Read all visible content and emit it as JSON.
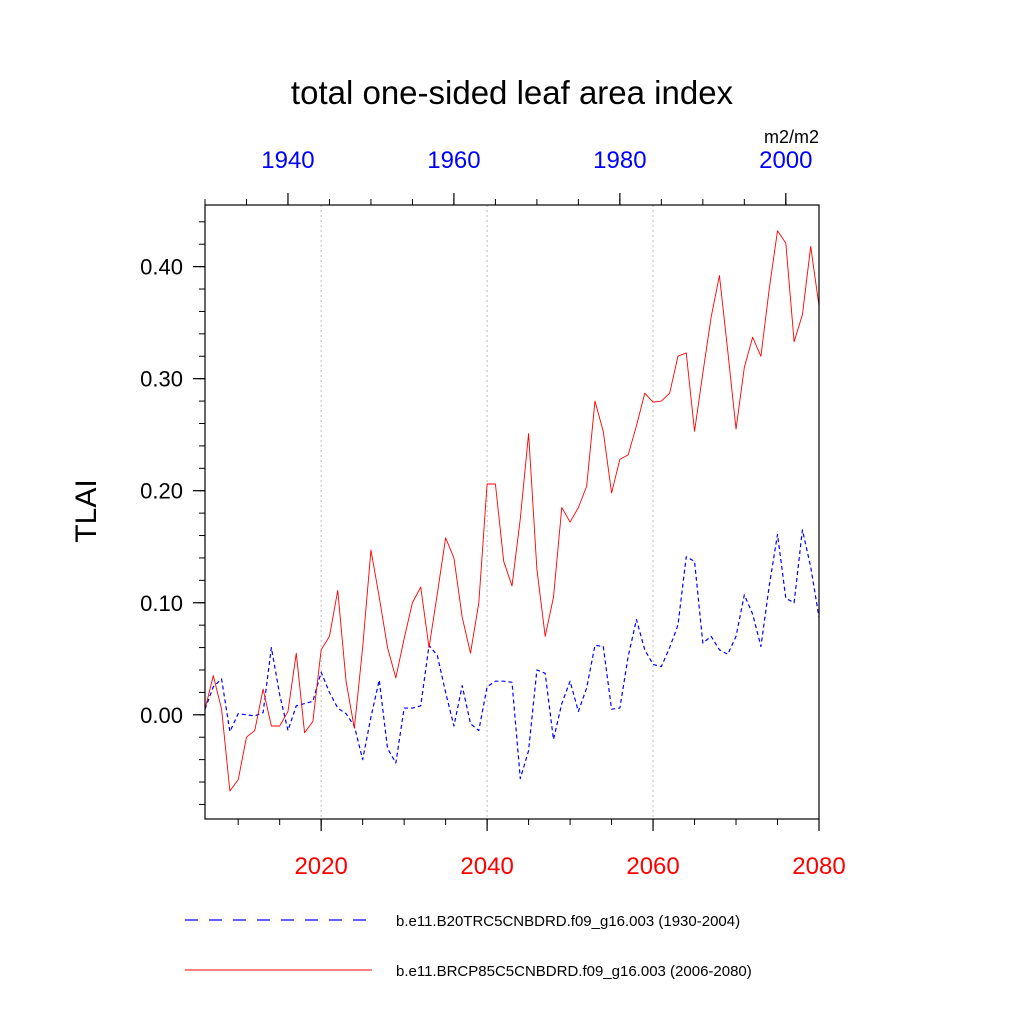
{
  "chart_data": {
    "type": "line",
    "title": "total one-sided leaf area index",
    "units": "m2/m2",
    "ylabel": "TLAI",
    "ylim": [
      -0.093,
      0.455
    ],
    "yticks": [
      0.0,
      0.1,
      0.2,
      0.3,
      0.4
    ],
    "ytick_labels": [
      "0.00",
      "0.10",
      "0.20",
      "0.30",
      "0.40"
    ],
    "y_minor_step": 0.02,
    "xlim_bottom": [
      2006,
      2080
    ],
    "xticks_bottom": [
      2020,
      2040,
      2060,
      2080
    ],
    "xlim_top": [
      1930,
      2004
    ],
    "xticks_top": [
      1940,
      1960,
      1980,
      2000
    ],
    "x_minor_step": 5,
    "vertical_gridlines": [
      2020,
      2040,
      2060
    ],
    "colors": {
      "top_axis": "#0000ff",
      "bottom_axis": "#ff0000",
      "series1": "#0000ff",
      "series2": "#ff0000",
      "grid": "#bbbbbb"
    },
    "legend_position": "bottom",
    "series": [
      {
        "name": "b.e11.B20TRC5CNBDRD.f09_g16.003 (1930-2004)",
        "axis": "top",
        "style": "dashed",
        "x": [
          1930,
          1931,
          1932,
          1933,
          1934,
          1935,
          1936,
          1937,
          1938,
          1939,
          1940,
          1941,
          1942,
          1943,
          1944,
          1945,
          1946,
          1947,
          1948,
          1949,
          1950,
          1951,
          1952,
          1953,
          1954,
          1955,
          1956,
          1957,
          1958,
          1959,
          1960,
          1961,
          1962,
          1963,
          1964,
          1965,
          1966,
          1967,
          1968,
          1969,
          1970,
          1971,
          1972,
          1973,
          1974,
          1975,
          1976,
          1977,
          1978,
          1979,
          1980,
          1981,
          1982,
          1983,
          1984,
          1985,
          1986,
          1987,
          1988,
          1989,
          1990,
          1991,
          1992,
          1993,
          1994,
          1995,
          1996,
          1997,
          1998,
          1999,
          2000,
          2001,
          2002,
          2003,
          2004
        ],
        "values": [
          0.005,
          0.025,
          0.032,
          -0.015,
          0.001,
          0.0,
          -0.001,
          0.002,
          0.06,
          0.018,
          -0.014,
          0.008,
          0.01,
          0.012,
          0.038,
          0.02,
          0.006,
          0.001,
          -0.01,
          -0.04,
          -0.002,
          0.031,
          -0.03,
          -0.043,
          0.006,
          0.006,
          0.008,
          0.062,
          0.053,
          0.02,
          -0.01,
          0.026,
          -0.008,
          -0.014,
          0.025,
          0.03,
          0.03,
          0.029,
          -0.057,
          -0.032,
          0.04,
          0.037,
          -0.022,
          0.01,
          0.03,
          0.003,
          0.024,
          0.062,
          0.061,
          0.005,
          0.006,
          0.052,
          0.085,
          0.058,
          0.045,
          0.043,
          0.06,
          0.08,
          0.141,
          0.137,
          0.064,
          0.07,
          0.058,
          0.054,
          0.07,
          0.107,
          0.09,
          0.061,
          0.115,
          0.161,
          0.104,
          0.1,
          0.165,
          0.132,
          0.087
        ]
      },
      {
        "name": "b.e11.BRCP85C5CNBDRD.f09_g16.003 (2006-2080)",
        "axis": "bottom",
        "style": "solid",
        "x": [
          2006,
          2007,
          2008,
          2009,
          2010,
          2011,
          2012,
          2013,
          2014,
          2015,
          2016,
          2017,
          2018,
          2019,
          2020,
          2021,
          2022,
          2023,
          2024,
          2025,
          2026,
          2027,
          2028,
          2029,
          2030,
          2031,
          2032,
          2033,
          2034,
          2035,
          2036,
          2037,
          2038,
          2039,
          2040,
          2041,
          2042,
          2043,
          2044,
          2045,
          2046,
          2047,
          2048,
          2049,
          2050,
          2051,
          2052,
          2053,
          2054,
          2055,
          2056,
          2057,
          2058,
          2059,
          2060,
          2061,
          2062,
          2063,
          2064,
          2065,
          2066,
          2067,
          2068,
          2069,
          2070,
          2071,
          2072,
          2073,
          2074,
          2075,
          2076,
          2077,
          2078,
          2079,
          2080
        ],
        "values": [
          0.005,
          0.035,
          0.005,
          -0.068,
          -0.058,
          -0.02,
          -0.014,
          0.023,
          -0.01,
          -0.01,
          0.003,
          0.055,
          -0.016,
          -0.006,
          0.058,
          0.07,
          0.111,
          0.03,
          -0.012,
          0.06,
          0.147,
          0.105,
          0.06,
          0.033,
          0.068,
          0.1,
          0.114,
          0.06,
          0.108,
          0.158,
          0.14,
          0.087,
          0.055,
          0.1,
          0.206,
          0.206,
          0.137,
          0.115,
          0.175,
          0.251,
          0.13,
          0.07,
          0.105,
          0.185,
          0.172,
          0.185,
          0.204,
          0.28,
          0.253,
          0.198,
          0.228,
          0.232,
          0.258,
          0.287,
          0.279,
          0.28,
          0.287,
          0.32,
          0.323,
          0.253,
          0.305,
          0.355,
          0.392,
          0.325,
          0.255,
          0.31,
          0.337,
          0.32,
          0.38,
          0.432,
          0.421,
          0.333,
          0.357,
          0.418,
          0.365
        ]
      }
    ]
  }
}
